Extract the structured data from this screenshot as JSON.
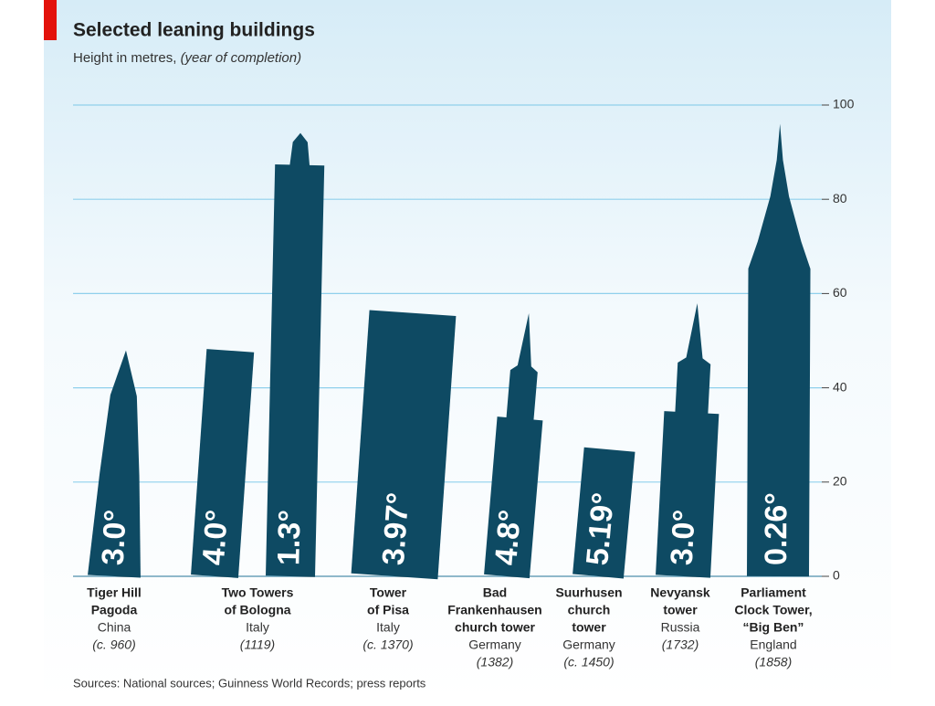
{
  "chart_data": {
    "type": "pictogram",
    "title": "Selected leaning buildings",
    "subtitle": "Height in metres,",
    "subtitle_italic": "(year of completion)",
    "source": "Sources: National sources; Guinness World Records; press reports",
    "color": "#0e4a63",
    "ylim": [
      0,
      100
    ],
    "yticks": [
      0,
      20,
      40,
      60,
      80,
      100
    ],
    "grid": true,
    "buildings": [
      {
        "name": [
          "Tiger Hill",
          "Pagoda"
        ],
        "country": "China",
        "year": "(c. 960)",
        "heights": [
          48
        ],
        "lean": [
          3.0
        ],
        "lean_labels": [
          "3.0°"
        ]
      },
      {
        "name": [
          "Two Towers",
          "of Bologna"
        ],
        "country": "Italy",
        "year": "(1119)",
        "heights": [
          48,
          97
        ],
        "lean": [
          4.0,
          1.3
        ],
        "lean_labels": [
          "4.0°",
          "1.3°"
        ]
      },
      {
        "name": [
          "Tower",
          "of Pisa"
        ],
        "country": "Italy",
        "year": "(c. 1370)",
        "heights": [
          56
        ],
        "lean": [
          3.97
        ],
        "lean_labels": [
          "3.97°"
        ]
      },
      {
        "name": [
          "Bad",
          "Frankenhausen",
          "church tower"
        ],
        "country": "Germany",
        "year": "(1382)",
        "heights": [
          56
        ],
        "lean": [
          4.8
        ],
        "lean_labels": [
          "4.8°"
        ]
      },
      {
        "name": [
          "Suurhusen",
          "church",
          "tower"
        ],
        "country": "Germany",
        "year": "(c. 1450)",
        "heights": [
          27
        ],
        "lean": [
          5.19
        ],
        "lean_labels": [
          "5.19°"
        ]
      },
      {
        "name": [
          "Nevyansk",
          "tower"
        ],
        "country": "Russia",
        "year": "(1732)",
        "heights": [
          58
        ],
        "lean": [
          3.0
        ],
        "lean_labels": [
          "3.0°"
        ]
      },
      {
        "name": [
          "Parliament",
          "Clock Tower,",
          "“Big Ben”"
        ],
        "country": "England",
        "year": "(1858)",
        "heights": [
          96
        ],
        "lean": [
          0.26
        ],
        "lean_labels": [
          "0.26°"
        ]
      }
    ]
  }
}
